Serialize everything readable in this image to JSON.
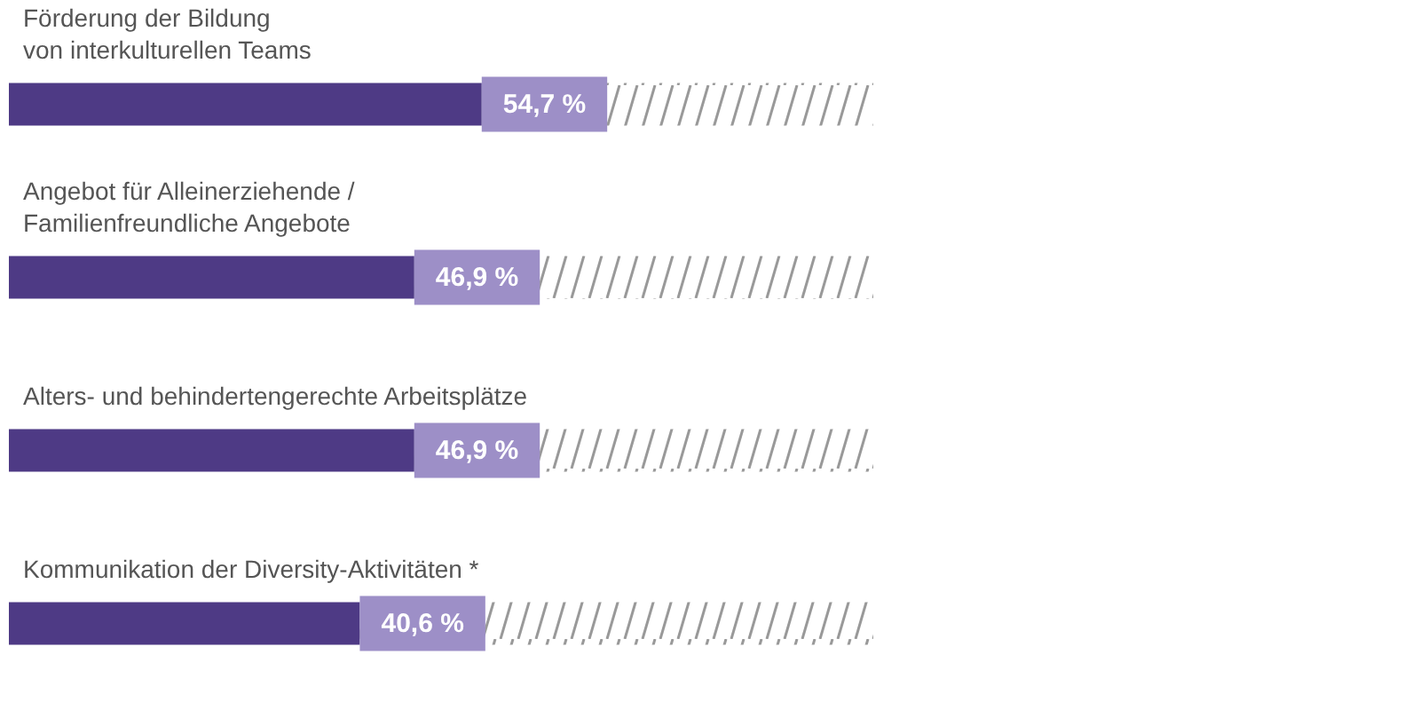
{
  "chart_data": {
    "type": "bar",
    "orientation": "horizontal",
    "stacked": true,
    "categories": [
      "Förderung der Bildung\nvon interkulturellen Teams",
      "Angebot für Alleinerziehende /\nFamilienfreundliche Angebote",
      "Alters- und behindertengerechte Arbeitsplätze",
      "Kommunikation der Diversity-Aktivitäten *"
    ],
    "series": [
      {
        "color": "#4e3a85",
        "values": [
          54.7,
          46.9,
          46.9,
          40.6
        ],
        "value_labels": [
          "54,7 %",
          "46,9 %",
          "46,9 %",
          "40,6 %"
        ]
      },
      {
        "color": "#999999",
        "values": [
          45.3,
          53.1,
          53.1,
          59.4
        ]
      }
    ],
    "xlim": [
      0,
      100
    ],
    "tick_labels": "y",
    "grid": false
  }
}
